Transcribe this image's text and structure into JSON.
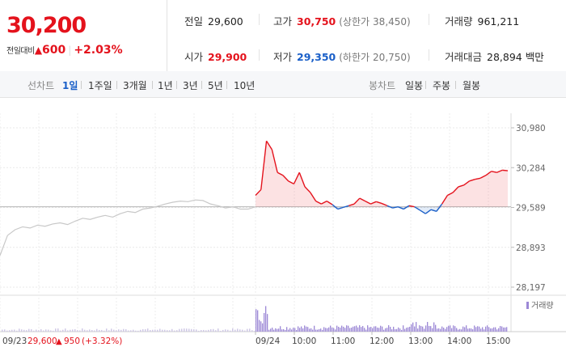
{
  "quote": {
    "current_price": "30,200",
    "change_label": "전일대비",
    "change_arrow": "▲",
    "change_amount": "600",
    "change_percent": "+2.03%"
  },
  "stats": {
    "prev_close": {
      "label": "전일",
      "value": "29,600"
    },
    "high": {
      "label": "고가",
      "value": "30,750",
      "limit_label": "(상한가",
      "limit_value": "38,450)"
    },
    "volume": {
      "label": "거래량",
      "value": "961,211"
    },
    "open": {
      "label": "시가",
      "value": "29,900"
    },
    "low": {
      "label": "저가",
      "value": "29,350",
      "limit_label": "(하한가",
      "limit_value": "20,750)"
    },
    "trade_value": {
      "label": "거래대금",
      "value": "28,894",
      "unit": "백만"
    }
  },
  "toolbar": {
    "line_chart_label": "선차트",
    "periods": [
      "1일",
      "1주일",
      "3개월",
      "1년",
      "3년",
      "5년",
      "10년"
    ],
    "active_period": 0,
    "candle_chart_label": "봉차트",
    "candle_periods": [
      "일봉",
      "주봉",
      "월봉"
    ]
  },
  "chart_data": {
    "type": "line",
    "y_ticks": [
      "30,980",
      "30,284",
      "29,589",
      "28,893",
      "28,197"
    ],
    "ylim": [
      28197,
      30980
    ],
    "baseline": 29600,
    "x_ticks": [
      "09/24",
      "10:00",
      "11:00",
      "12:00",
      "13:00",
      "14:00",
      "15:00"
    ],
    "prev_day": {
      "date_label": "09/23",
      "close": "29,600",
      "arrow": "▲",
      "change": "950",
      "change_percent": "(+3.32%)"
    },
    "volume_legend": "거래량",
    "series": [
      {
        "values": [
          28750,
          29100,
          29200,
          29250,
          29230,
          29280,
          29260,
          29300,
          29320,
          29290,
          29350,
          29400,
          29380,
          29420,
          29450,
          29420,
          29480,
          29520,
          29500,
          29560,
          29580,
          29610,
          29650,
          29680,
          29700,
          29690,
          29720,
          29710,
          29650,
          29620,
          29580,
          29600,
          29560,
          29560,
          29600
        ]
      },
      {
        "values": [
          29800,
          29900,
          30750,
          30600,
          30200,
          30150,
          30050,
          30000,
          30200,
          29950,
          29850,
          29700,
          29650,
          29700,
          29640,
          29560,
          29590,
          29620,
          29650,
          29750,
          29700,
          29650,
          29690,
          29660,
          29620,
          29580,
          29600,
          29560,
          29620,
          29600,
          29540,
          29480,
          29550,
          29520,
          29650,
          29800,
          29850,
          29950,
          29980,
          30050,
          30080,
          30100,
          30150,
          30220,
          30200,
          30240,
          30230
        ]
      }
    ]
  }
}
